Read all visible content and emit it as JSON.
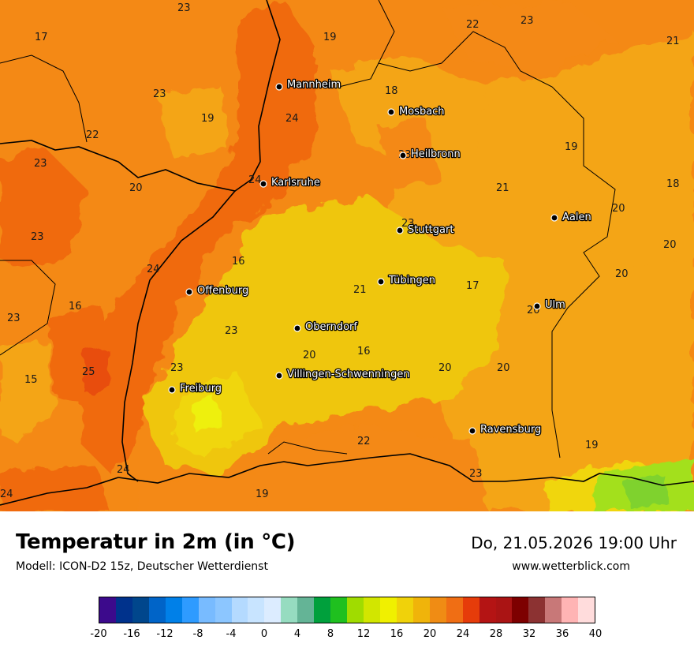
{
  "title": "Temperatur in 2m (in °C)",
  "model": "Modell: ICON-D2 15z, Deutscher Wetterdienst",
  "datetime": "Do, 21.05.2026 19:00 Uhr",
  "website": "www.wetterblick.com",
  "colors": {
    "hot_zone": "#f06b0f",
    "warm_zone": "#f48915",
    "mild_zone": "#f4a514",
    "cool_zone": "#efc60f",
    "cooler_zone": "#f0d60e",
    "coolest_zone": "#eef00d",
    "green_zone": "#a3e01e",
    "border_line": "#000000"
  },
  "cities": [
    {
      "name": "Mannheim"
    },
    {
      "name": "Mosbach"
    },
    {
      "name": "Heilbronn"
    },
    {
      "name": "Karlsruhe"
    },
    {
      "name": "Aalen"
    },
    {
      "name": "Stuttgart"
    },
    {
      "name": "Tübingen"
    },
    {
      "name": "Offenburg"
    },
    {
      "name": "Ulm"
    },
    {
      "name": "Oberndorf"
    },
    {
      "name": "Villingen-Schwenningen"
    },
    {
      "name": "Freiburg"
    },
    {
      "name": "Ravensburg"
    }
  ],
  "values": [
    "23",
    "17",
    "19",
    "22",
    "23",
    "21",
    "23",
    "18",
    "19",
    "24",
    "22",
    "23",
    "20",
    "24",
    "19",
    "18",
    "23",
    "20",
    "23",
    "21",
    "20",
    "24",
    "16",
    "23",
    "16",
    "21",
    "17",
    "20",
    "20",
    "23",
    "25",
    "15",
    "23",
    "20",
    "16",
    "20",
    "20",
    "22",
    "19",
    "24",
    "23",
    "24",
    "19",
    "23"
  ],
  "legend": {
    "colors": [
      "#3c0a8c",
      "#00328c",
      "#00468c",
      "#0064c8",
      "#0080e8",
      "#2e9bff",
      "#78bbff",
      "#8cc6ff",
      "#b4daff",
      "#c8e4ff",
      "#dcecff",
      "#96dcc0",
      "#64b496",
      "#00a03c",
      "#1fc01f",
      "#a0dc00",
      "#d2e600",
      "#f0f000",
      "#f0d20a",
      "#f0b40a",
      "#f08c14",
      "#f06e14",
      "#e63c0a",
      "#b41414",
      "#aa1414",
      "#7d0000",
      "#8c3232",
      "#c87878",
      "#ffb4b4",
      "#ffdcdc"
    ],
    "ticks": [
      "-20",
      "-16",
      "-12",
      "-8",
      "-4",
      "0",
      "4",
      "8",
      "12",
      "16",
      "20",
      "24",
      "28",
      "32",
      "36",
      "40"
    ]
  }
}
